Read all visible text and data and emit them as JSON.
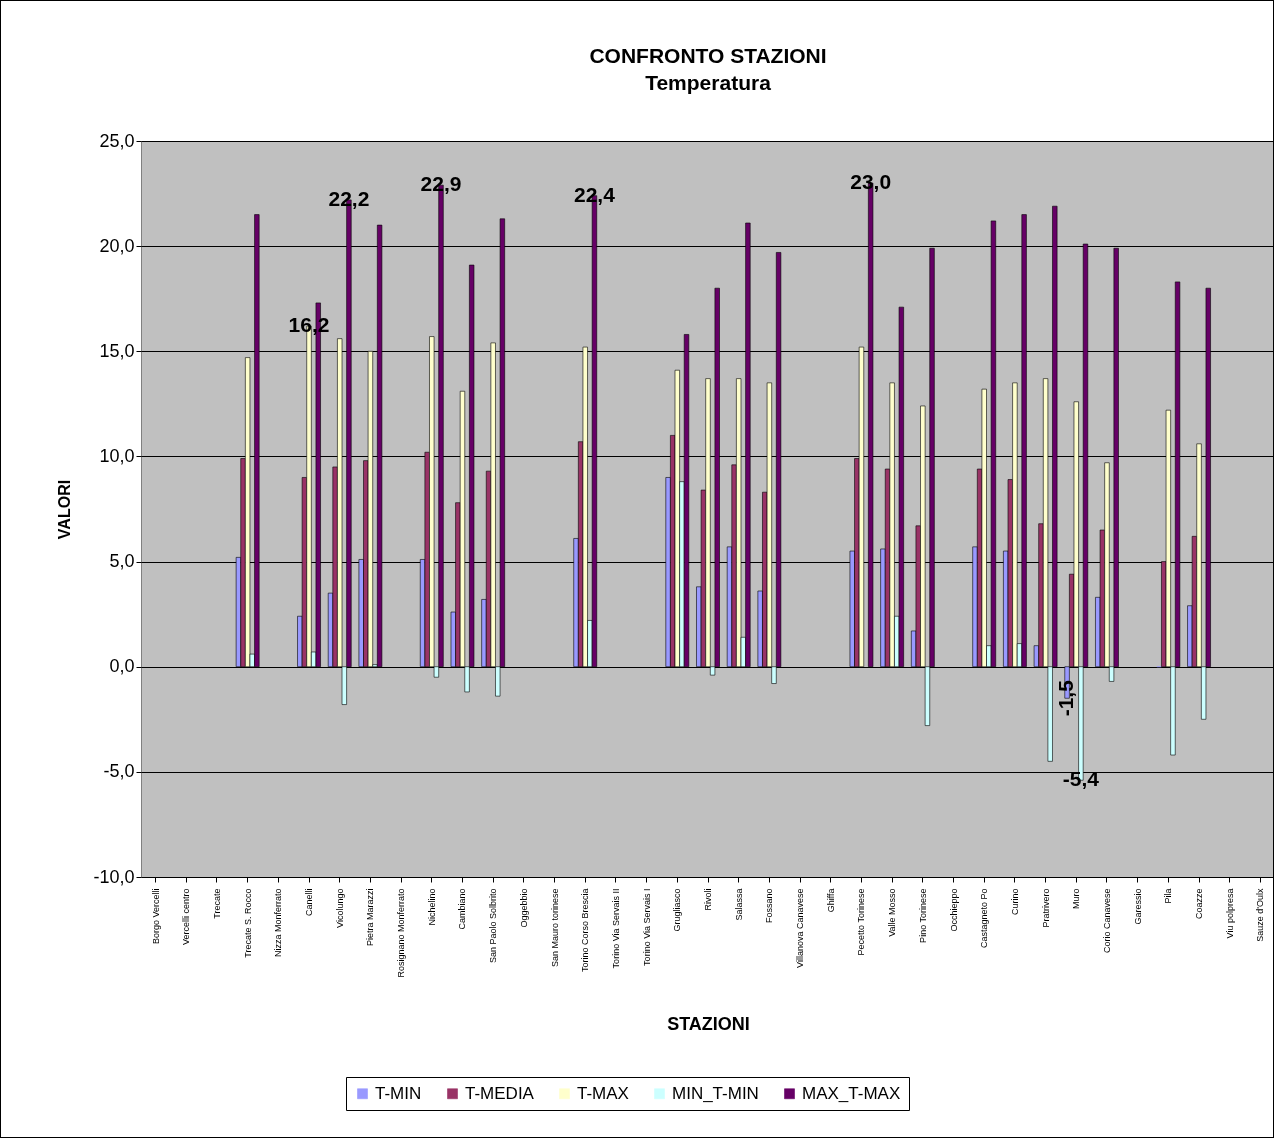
{
  "chart_data": {
    "type": "bar",
    "title": "CONFRONTO STAZIONI",
    "subtitle": "Temperatura",
    "xlabel": "STAZIONI",
    "ylabel": "VALORI",
    "categories": [
      "Borgo Vercelli",
      "Vercelli centro",
      "Trecate",
      "Trecate S. Rocco",
      "Nizza Monferrato",
      "Canelli",
      "Vicolungo",
      "Pietra Marazzi",
      "Rosignano Monferrato",
      "Nichelino",
      "Cambiano",
      "San Paolo Solbrito",
      "Oggebbio",
      "San Mauro torinese",
      "Torino Corso Brescia",
      "Torino Via Servais II",
      "Torino Via Servais I",
      "Grugliasco",
      "Rivoli",
      "Salassa",
      "Fossano",
      "Villanova Canavese",
      "Ghiffa",
      "Pecetto Torinese",
      "Valle Mosso",
      "Pino Torinese",
      "Occhieppo",
      "Castagneto Po",
      "Curino",
      "Pratrivero",
      "Muro",
      "Corio Canavese",
      "Garessio",
      "Pila",
      "Coazze",
      "Viu polpresa",
      "Sauze d'Oulx"
    ],
    "series": [
      {
        "name": "T-MIN",
        "color": "#9999ff",
        "values": [
          null,
          null,
          null,
          5.2,
          null,
          2.4,
          3.5,
          5.1,
          null,
          5.1,
          2.6,
          3.2,
          null,
          null,
          6.1,
          null,
          null,
          9.0,
          3.8,
          5.7,
          3.6,
          null,
          null,
          5.5,
          5.6,
          1.7,
          null,
          5.7,
          5.5,
          1.0,
          -1.5,
          3.3,
          null,
          0.0,
          2.9,
          null,
          null
        ],
        "value_labels": [
          null,
          null,
          null,
          null,
          null,
          null,
          null,
          null,
          null,
          null,
          null,
          null,
          null,
          null,
          null,
          null,
          null,
          null,
          null,
          null,
          null,
          null,
          null,
          null,
          null,
          null,
          null,
          null,
          null,
          null,
          "-1,5",
          null,
          null,
          null,
          null,
          null,
          null
        ]
      },
      {
        "name": "T-MEDIA",
        "color": "#993366",
        "values": [
          null,
          null,
          null,
          9.9,
          null,
          9.0,
          9.5,
          9.8,
          null,
          10.2,
          7.8,
          9.3,
          null,
          null,
          10.7,
          null,
          null,
          11.0,
          8.4,
          9.6,
          8.3,
          null,
          null,
          9.9,
          9.4,
          6.7,
          null,
          9.4,
          8.9,
          6.8,
          4.4,
          6.5,
          null,
          5.0,
          6.2,
          null,
          null
        ]
      },
      {
        "name": "T-MAX",
        "color": "#ffffcc",
        "values": [
          null,
          null,
          null,
          14.7,
          null,
          16.2,
          15.6,
          15.0,
          null,
          15.7,
          13.1,
          15.4,
          null,
          null,
          15.2,
          null,
          null,
          14.1,
          13.7,
          13.7,
          13.5,
          null,
          null,
          15.2,
          13.5,
          12.4,
          null,
          13.2,
          13.5,
          13.7,
          12.6,
          9.7,
          null,
          12.2,
          10.6,
          null,
          null
        ],
        "value_labels": [
          null,
          null,
          null,
          null,
          null,
          "16,2",
          null,
          null,
          null,
          null,
          null,
          null,
          null,
          null,
          null,
          null,
          null,
          null,
          null,
          null,
          null,
          null,
          null,
          null,
          null,
          null,
          null,
          null,
          null,
          null,
          null,
          null,
          null,
          null,
          null,
          null,
          null
        ]
      },
      {
        "name": "MIN_T-MIN",
        "color": "#ccffff",
        "values": [
          null,
          null,
          null,
          0.6,
          null,
          0.7,
          -1.8,
          0.1,
          null,
          -0.5,
          -1.2,
          -1.4,
          null,
          null,
          2.2,
          null,
          null,
          8.8,
          -0.4,
          1.4,
          -0.8,
          null,
          null,
          null,
          2.4,
          -2.8,
          null,
          1.0,
          1.1,
          -4.5,
          -5.4,
          -0.7,
          null,
          -4.2,
          -2.5,
          null,
          null
        ],
        "value_labels": [
          null,
          null,
          null,
          null,
          null,
          null,
          null,
          null,
          null,
          null,
          null,
          null,
          null,
          null,
          null,
          null,
          null,
          null,
          null,
          null,
          null,
          null,
          null,
          null,
          null,
          null,
          null,
          null,
          null,
          null,
          "-5,4",
          null,
          null,
          null,
          null,
          null,
          null
        ]
      },
      {
        "name": "MAX_T-MAX",
        "color": "#660066",
        "values": [
          null,
          null,
          null,
          21.5,
          null,
          17.3,
          22.2,
          21.0,
          null,
          22.9,
          19.1,
          21.3,
          null,
          null,
          22.4,
          null,
          null,
          15.8,
          18.0,
          21.1,
          19.7,
          null,
          null,
          23.0,
          17.1,
          19.9,
          null,
          21.2,
          21.5,
          21.9,
          20.1,
          19.9,
          null,
          18.3,
          18.0,
          null,
          null
        ],
        "value_labels": [
          null,
          null,
          null,
          null,
          null,
          null,
          "22,2",
          null,
          null,
          "22,9",
          null,
          null,
          null,
          null,
          "22,4",
          null,
          null,
          null,
          null,
          null,
          null,
          null,
          null,
          "23,0",
          null,
          null,
          null,
          null,
          null,
          null,
          null,
          null,
          null,
          null,
          null,
          null,
          null
        ]
      }
    ],
    "ylim": [
      -10,
      25
    ],
    "yticks": [
      {
        "value": -10,
        "label": "-10,0"
      },
      {
        "value": -5,
        "label": "-5,0"
      },
      {
        "value": 0,
        "label": "0,0"
      },
      {
        "value": 5,
        "label": "5,0"
      },
      {
        "value": 10,
        "label": "10,0"
      },
      {
        "value": 15,
        "label": "15,0"
      },
      {
        "value": 20,
        "label": "20,0"
      },
      {
        "value": 25,
        "label": "25,0"
      }
    ],
    "grid": "y",
    "legend": "bottom"
  }
}
